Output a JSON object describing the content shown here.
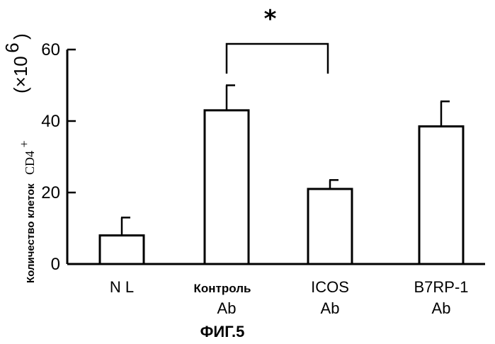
{
  "chart_data": {
    "type": "bar",
    "categories": [
      [
        "N L"
      ],
      [
        "Контроль",
        "Ab"
      ],
      [
        "ICOS",
        "Ab"
      ],
      [
        "B7RP-1",
        "Ab"
      ]
    ],
    "values": [
      8,
      43,
      21,
      38.5
    ],
    "errors": [
      5,
      7,
      2.5,
      7
    ],
    "ylabel": "Количество клеток",
    "ylabel_cd4": "CD4",
    "ylabel_cd4_sup": "+",
    "unit": "(×10",
    "unit_exp": "6",
    "unit_close": ")",
    "yticks": [
      "0",
      "20",
      "40",
      "60"
    ],
    "ylim": [
      0,
      60
    ],
    "significance": {
      "between": [
        1,
        2
      ],
      "marker": "*"
    },
    "grid": false,
    "caption": "ФИГ.5"
  }
}
